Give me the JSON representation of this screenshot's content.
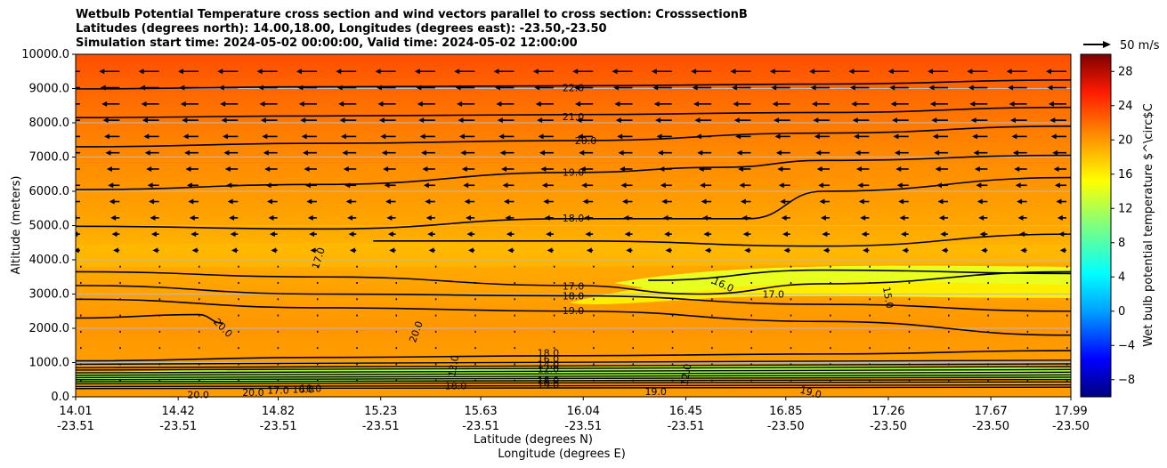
{
  "chart_data": {
    "type": "contour",
    "title_lines": [
      "Wetbulb Potential Temperature cross section and wind vectors parallel to cross section: CrosssectionB",
      "Latitudes (degrees north): 14.00,18.00, Longitudes (degrees east): -23.50,-23.50",
      "Simulation start time: 2024-05-02 00:00:00, Valid time: 2024-05-02 12:00:00"
    ],
    "ylabel": "Altitude (meters)",
    "xlabel_lat": "Latitude (degrees N)",
    "xlabel_lon": "Longitude (degrees E)",
    "ylim": [
      0,
      10000
    ],
    "y_ticks": [
      0,
      1000,
      2000,
      3000,
      4000,
      5000,
      6000,
      7000,
      8000,
      9000,
      10000
    ],
    "y_tick_labels": [
      "0.0",
      "1000.0",
      "2000.0",
      "3000.0",
      "4000.0",
      "5000.0",
      "6000.0",
      "7000.0",
      "8000.0",
      "9000.0",
      "10000.0"
    ],
    "x_ticks_lat": [
      "14.01",
      "14.42",
      "14.82",
      "15.23",
      "15.63",
      "16.04",
      "16.45",
      "16.85",
      "17.26",
      "17.67",
      "17.99"
    ],
    "x_ticks_lon": [
      "-23.51",
      "-23.51",
      "-23.51",
      "-23.51",
      "-23.51",
      "-23.51",
      "-23.51",
      "-23.50",
      "-23.50",
      "-23.50",
      "-23.50"
    ],
    "colorbar": {
      "label": "Wet bulb potential temperature $^\\circ$C",
      "range": [
        -10,
        30
      ],
      "ticks": [
        -8,
        -4,
        0,
        4,
        8,
        12,
        16,
        20,
        24,
        28
      ],
      "tick_labels": [
        "−8",
        "−4",
        "0",
        "4",
        "8",
        "12",
        "16",
        "20",
        "24",
        "28"
      ]
    },
    "quiver_key": "50 m/s",
    "contour_labels": [
      "22.0",
      "21.0",
      "20.0",
      "19.0",
      "18.0",
      "17.0",
      "17.0",
      "16.0",
      "17.0",
      "15.0",
      "18.0",
      "19.0",
      "20.0",
      "20.0",
      "20.0",
      "18.0",
      "16.0",
      "14.0",
      "12.0",
      "18.0",
      "19.0",
      "18.0",
      "19.0",
      "19.0",
      "20.0",
      "18.0",
      "17.0",
      "16.0",
      "12.0",
      "13.0"
    ],
    "contours": [
      {
        "level": 22,
        "x": [
          14.01,
          15.0,
          16.0,
          17.0,
          17.99
        ],
        "y": [
          8990,
          9050,
          9080,
          9130,
          9250
        ]
      },
      {
        "level": 21,
        "x": [
          14.01,
          15.0,
          16.0,
          17.0,
          17.99
        ],
        "y": [
          8150,
          8200,
          8240,
          8300,
          8450
        ]
      },
      {
        "level": 20,
        "x": [
          14.01,
          15.0,
          16.0,
          17.0,
          17.99
        ],
        "y": [
          7300,
          7400,
          7480,
          7700,
          7900
        ]
      },
      {
        "level": 19,
        "x": [
          14.01,
          15.0,
          16.0,
          16.6,
          17.0,
          17.99
        ],
        "y": [
          6050,
          6200,
          6550,
          6700,
          6900,
          7050
        ]
      },
      {
        "level": 18,
        "x": [
          14.01,
          15.0,
          16.0,
          16.7,
          17.0,
          17.99
        ],
        "y": [
          4980,
          4900,
          5200,
          5200,
          6000,
          6400
        ]
      },
      {
        "level": 17,
        "x": [
          15.2,
          16.0,
          17.0,
          17.99
        ],
        "y": [
          4550,
          4550,
          4400,
          4750
        ]
      },
      {
        "level": 17,
        "x": [
          14.01,
          15.0,
          16.0,
          16.5,
          17.0,
          17.99
        ],
        "y": [
          3650,
          3500,
          3250,
          3000,
          3300,
          3650
        ]
      },
      {
        "level": 16,
        "x": [
          16.3,
          17.0,
          17.99
        ],
        "y": [
          3400,
          3700,
          3600
        ]
      },
      {
        "level": 18,
        "x": [
          14.01,
          15.0,
          16.0,
          17.0,
          17.99
        ],
        "y": [
          3250,
          3000,
          2950,
          2700,
          2500
        ]
      },
      {
        "level": 19,
        "x": [
          14.01,
          15.0,
          16.0,
          17.0,
          17.99
        ],
        "y": [
          2850,
          2600,
          2500,
          2200,
          1800
        ]
      },
      {
        "level": 20,
        "x": [
          14.01,
          14.5,
          14.6
        ],
        "y": [
          2300,
          2400,
          2150
        ]
      },
      {
        "level": 18,
        "x": [
          14.01,
          15.0,
          16.0,
          17.0,
          17.99
        ],
        "y": [
          1050,
          1150,
          1200,
          1250,
          1350
        ]
      }
    ]
  }
}
